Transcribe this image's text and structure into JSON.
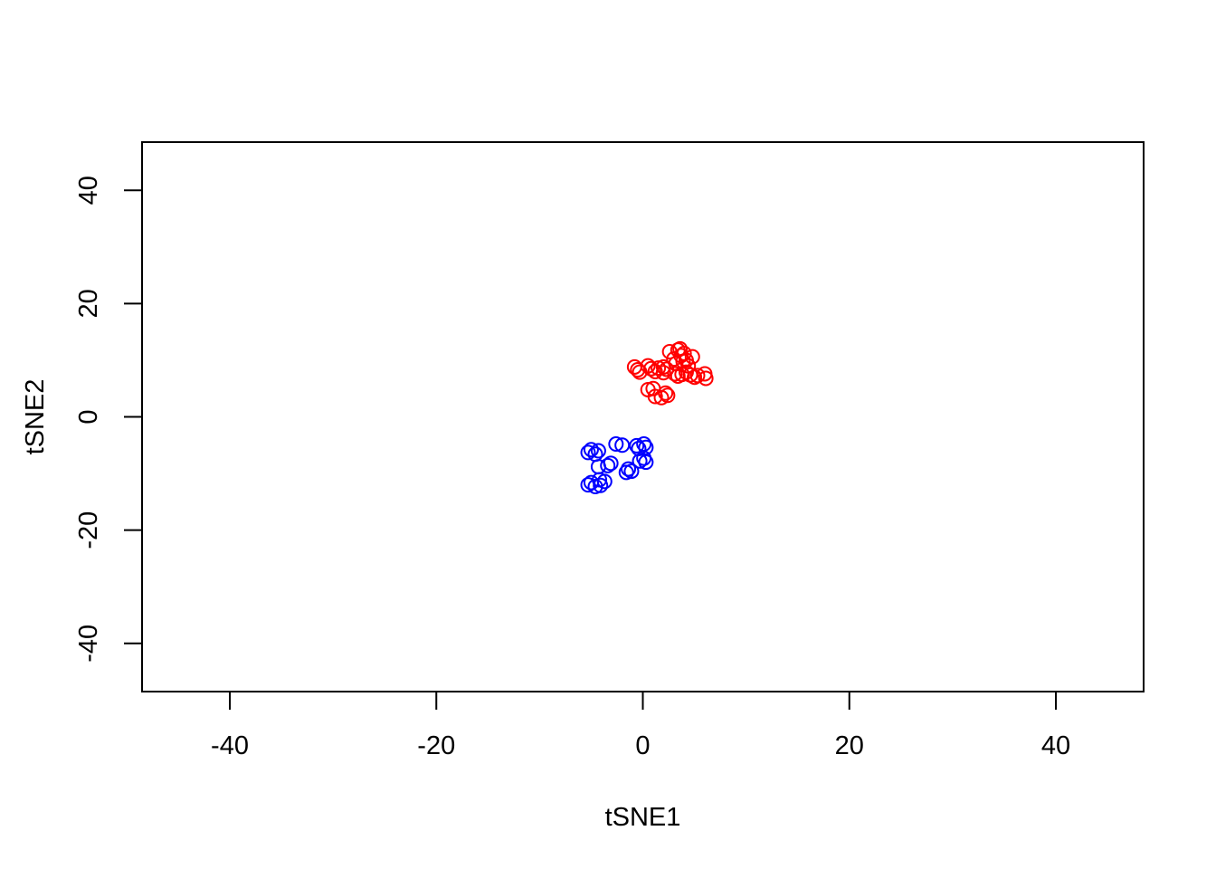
{
  "chart_data": {
    "type": "scatter",
    "title": "",
    "xlabel": "tSNE1",
    "ylabel": "tSNE2",
    "xlim": [
      -48.5,
      48.5
    ],
    "ylim": [
      -48.5,
      48.5
    ],
    "x_ticks": [
      -40,
      -20,
      0,
      20,
      40
    ],
    "x_tick_labels": [
      "-40",
      "-20",
      "0",
      "20",
      "40"
    ],
    "y_ticks": [
      -40,
      -20,
      0,
      20,
      40
    ],
    "y_tick_labels": [
      "-40",
      "-20",
      "0",
      "20",
      "40"
    ],
    "grid": false,
    "legend": "none",
    "marker": "open-circle",
    "series": [
      {
        "color": "#ff0000",
        "points": [
          [
            -0.8,
            8.8
          ],
          [
            -0.5,
            8.3
          ],
          [
            -0.3,
            7.9
          ],
          [
            0.5,
            9.0
          ],
          [
            0.8,
            8.5
          ],
          [
            1.2,
            8.0
          ],
          [
            1.5,
            8.6
          ],
          [
            2.0,
            7.8
          ],
          [
            2.3,
            8.4
          ],
          [
            2.6,
            11.5
          ],
          [
            3.0,
            10.2
          ],
          [
            3.2,
            9.4
          ],
          [
            3.4,
            11.8
          ],
          [
            3.6,
            12.0
          ],
          [
            3.7,
            10.8
          ],
          [
            3.9,
            9.8
          ],
          [
            4.0,
            11.2
          ],
          [
            4.2,
            10.0
          ],
          [
            4.4,
            9.0
          ],
          [
            4.8,
            10.6
          ],
          [
            3.1,
            7.6
          ],
          [
            3.4,
            7.2
          ],
          [
            3.8,
            7.5
          ],
          [
            4.2,
            7.9
          ],
          [
            4.6,
            7.4
          ],
          [
            5.0,
            7.0
          ],
          [
            5.3,
            7.3
          ],
          [
            6.0,
            7.6
          ],
          [
            6.1,
            6.8
          ],
          [
            2.0,
            8.8
          ],
          [
            0.5,
            4.8
          ],
          [
            1.0,
            5.0
          ],
          [
            1.2,
            3.6
          ],
          [
            1.8,
            3.4
          ],
          [
            2.2,
            4.2
          ],
          [
            2.4,
            3.8
          ]
        ]
      },
      {
        "color": "#0000ff",
        "points": [
          [
            -5.3,
            -6.3
          ],
          [
            -5.0,
            -5.8
          ],
          [
            -4.6,
            -6.6
          ],
          [
            -4.3,
            -6.0
          ],
          [
            -3.4,
            -8.6
          ],
          [
            -3.1,
            -8.2
          ],
          [
            -2.6,
            -4.8
          ],
          [
            -2.0,
            -5.0
          ],
          [
            -1.6,
            -9.8
          ],
          [
            -1.4,
            -9.2
          ],
          [
            -1.1,
            -9.6
          ],
          [
            -0.6,
            -5.1
          ],
          [
            -0.4,
            -5.6
          ],
          [
            0.1,
            -4.8
          ],
          [
            0.3,
            -5.4
          ],
          [
            -0.3,
            -7.8
          ],
          [
            0.1,
            -7.3
          ],
          [
            0.3,
            -8.0
          ],
          [
            -4.3,
            -8.8
          ],
          [
            -5.0,
            -11.6
          ],
          [
            -4.6,
            -12.3
          ],
          [
            -4.2,
            -11.1
          ],
          [
            -3.7,
            -11.4
          ],
          [
            -5.3,
            -12.0
          ],
          [
            -4.1,
            -12.1
          ]
        ]
      }
    ]
  }
}
